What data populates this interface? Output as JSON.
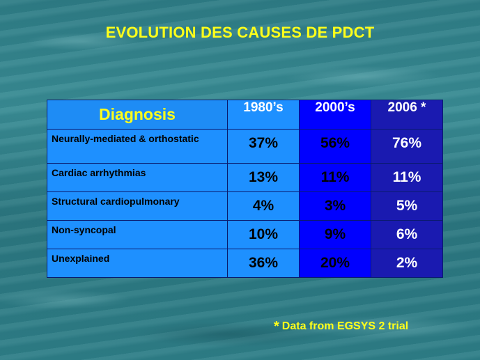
{
  "title": "EVOLUTION DES CAUSES DE PDCT",
  "table": {
    "headers": [
      "Diagnosis",
      "1980’s",
      "2000’s",
      "2006 *"
    ],
    "rows": [
      {
        "label": "Neurally-mediated & orthostatic",
        "values": [
          "37%",
          "56%",
          "76%"
        ]
      },
      {
        "label": "Cardiac arrhythmias",
        "values": [
          "13%",
          "11%",
          "11%"
        ]
      },
      {
        "label": "Structural cardiopulmonary",
        "values": [
          "4%",
          "3%",
          "5%"
        ]
      },
      {
        "label": "Non-syncopal",
        "values": [
          "10%",
          "9%",
          "6%"
        ]
      },
      {
        "label": "Unexplained",
        "values": [
          "36%",
          "20%",
          "2%"
        ]
      }
    ]
  },
  "footnote": {
    "star": "*",
    "text": "Data from EGSYS 2 trial"
  },
  "colors": {
    "title": "#ffff1a",
    "col_1980s": "#1e90ff",
    "col_2000s": "#0000ff",
    "col_2006": "#1a1ab0"
  }
}
